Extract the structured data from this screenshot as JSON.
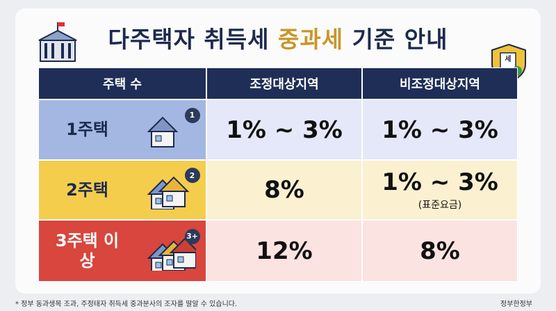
{
  "header": {
    "title": {
      "before": "다주택자 취득세 ",
      "highlight": "중과세",
      "after": " 기준 안내"
    }
  },
  "table": {
    "columns": [
      "주택 수",
      "조정대상지역",
      "비조정대상지역"
    ],
    "rows": [
      {
        "label": "1주택",
        "badge": "1",
        "cells": [
          "1% ~ 3%",
          "1% ~ 3%"
        ]
      },
      {
        "label": "2주택",
        "badge": "2",
        "cells": [
          "8%",
          "1% ~ 3%"
        ],
        "note": "(표준요금)"
      },
      {
        "label": "3주택 이상",
        "badge": "3+",
        "cells": [
          "12%",
          "8%"
        ]
      }
    ]
  },
  "icon_text": "세",
  "footnote": "* 정부 동과생목 조과, 주정태자 취득세 중과분사의 조자를 딸알 수 있습니다.",
  "logo": "정부한정부"
}
